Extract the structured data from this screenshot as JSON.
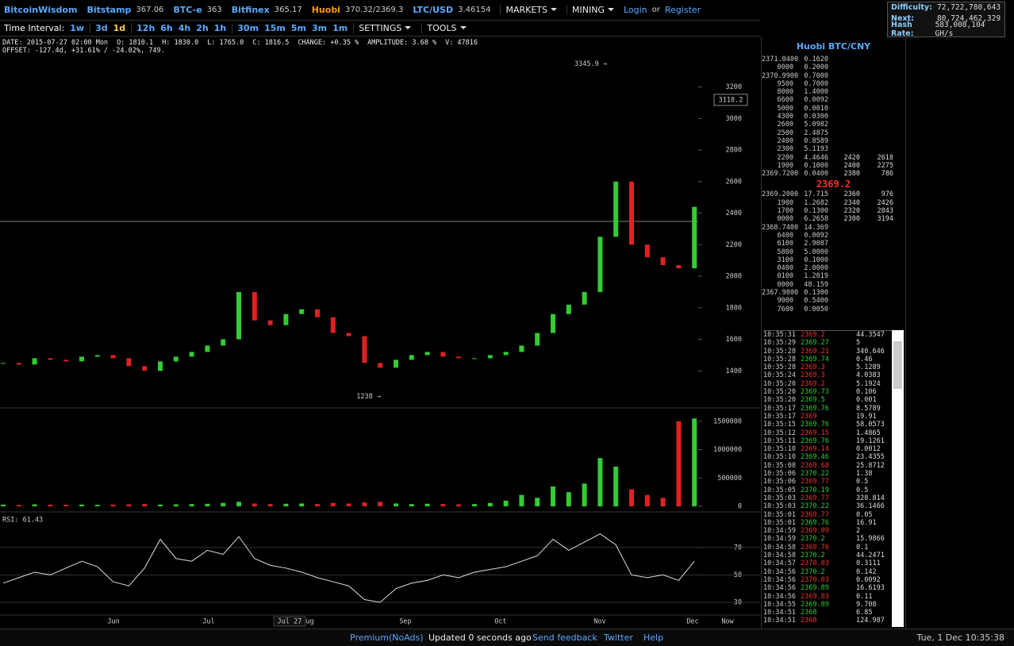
{
  "nav": {
    "brand": "BitcoinWisdom",
    "tickers": [
      [
        "Bitstamp",
        "367.06"
      ],
      [
        "BTC-e",
        "363"
      ],
      [
        "Bitfinex",
        "365.17"
      ],
      [
        "Huobi",
        "370.32/2369.3"
      ],
      [
        "LTC/USD",
        "3.46154"
      ]
    ],
    "menus": [
      "MARKETS",
      "MINING"
    ],
    "login": "Login",
    "or": "or",
    "register": "Register"
  },
  "stats": [
    [
      "Difficulty:",
      "72,722,780,643"
    ],
    [
      "Next:",
      "80,724,462,329"
    ],
    [
      "Hash Rate:",
      "583,008,104 GH/s"
    ]
  ],
  "toolbar": {
    "label": "Time Interval:",
    "intervals": [
      "1w",
      "3d",
      "1d",
      "12h",
      "6h",
      "4h",
      "2h",
      "1h",
      "30m",
      "15m",
      "5m",
      "3m",
      "1m"
    ],
    "menus": [
      "SETTINGS",
      "TOOLS"
    ]
  },
  "info": {
    "line1": [
      "DATE: 2015-07-27 02:00 Mon",
      "O: 1810.1",
      "H: 1830.0",
      "L: 1765.0",
      "C: 1816.5",
      "CHANGE: +0.35 %",
      "AMPLITUDE: 3.68 %",
      "V: 47816"
    ],
    "line2": "OFFSET: -127.4d, +31.61% / -24.02%, 749."
  },
  "chart_data": [
    {
      "type": "candlestick",
      "up_color": "#33cc33",
      "down_color": "#dd2222",
      "values": [
        1450,
        1440,
        1480,
        1470,
        1460,
        1490,
        1500,
        1480,
        1430,
        1400,
        1460,
        1490,
        1520,
        1560,
        1600,
        1900,
        1720,
        1690,
        1760,
        1790,
        1740,
        1640,
        1620,
        1450,
        1420,
        1470,
        1500,
        1520,
        1490,
        1480,
        1480,
        1500,
        1520,
        1560,
        1640,
        1760,
        1820,
        1900,
        2250,
        2600,
        2200,
        2120,
        2070,
        2050,
        2440
      ],
      "ylim": [
        1175,
        3525
      ],
      "yticks": [
        1400,
        1600,
        1800,
        2000,
        2200,
        2400,
        2600,
        2800,
        3000,
        3200
      ],
      "marker": 3118.2,
      "annotations": [
        {
          "value": 3345.9,
          "label": "3345.9 →"
        },
        {
          "value": 1238,
          "label": "1238 →"
        }
      ],
      "grid": false
    },
    {
      "type": "bar",
      "values": [
        30000,
        25000,
        35000,
        30000,
        28000,
        30000,
        25000,
        30000,
        35000,
        40000,
        30000,
        35000,
        40000,
        45000,
        60000,
        80000,
        50000,
        40000,
        45000,
        50000,
        40000,
        60000,
        50000,
        70000,
        80000,
        50000,
        40000,
        45000,
        40000,
        35000,
        40000,
        60000,
        100000,
        200000,
        150000,
        350000,
        250000,
        400000,
        850000,
        700000,
        300000,
        200000,
        150000,
        1500000,
        1550000
      ],
      "ylim": [
        0,
        1680000
      ],
      "yticks": [
        0,
        500000,
        1000000,
        1500000
      ],
      "grid": false
    },
    {
      "type": "line",
      "title": "RSI: 61.43",
      "color": "#dddddd",
      "values": [
        44,
        48,
        52,
        50,
        55,
        60,
        56,
        45,
        42,
        55,
        76,
        62,
        60,
        68,
        65,
        78,
        62,
        57,
        55,
        52,
        48,
        45,
        42,
        32,
        30,
        40,
        44,
        46,
        50,
        48,
        52,
        54,
        56,
        60,
        64,
        76,
        68,
        74,
        80,
        72,
        50,
        48,
        50,
        46,
        60
      ],
      "ylim": [
        20.7,
        94.3
      ],
      "yticks": [
        30,
        50,
        70
      ],
      "grid": true
    }
  ],
  "x_labels": [
    "Jun",
    "Jul",
    "Aug",
    "Jul 27",
    "Sep",
    "Oct",
    "Nov",
    "Dec",
    "Now"
  ],
  "orderbook": {
    "title": "Huobi BTC/CNY",
    "asks": [
      [
        "2371.0400",
        "0.1620"
      ],
      [
        "0000",
        "0.2000"
      ],
      [
        "2370.9900",
        "0.7000"
      ],
      [
        "9500",
        "0.7000"
      ],
      [
        "8000",
        "1.4000"
      ],
      [
        "6600",
        "0.0092"
      ],
      [
        "5000",
        "0.0010"
      ],
      [
        "4300",
        "0.0300"
      ],
      [
        "2600",
        "5.0982"
      ],
      [
        "2500",
        "2.4875"
      ],
      [
        "2400",
        "0.8589"
      ],
      [
        "2300",
        "5.1193"
      ],
      [
        "2200",
        "4.4646",
        "2420",
        "2618"
      ],
      [
        "1900",
        "0.1000",
        "2400",
        "2275"
      ],
      [
        "2369.7200",
        "0.0400",
        "2380",
        "786"
      ]
    ],
    "mid": "2369.2",
    "bids": [
      [
        "2369.2000",
        "17.715",
        "2360",
        "976"
      ],
      [
        "1900",
        "1.2682",
        "2340",
        "2426"
      ],
      [
        "1700",
        "0.1300",
        "2320",
        "2843"
      ],
      [
        "0000",
        "6.2658",
        "2300",
        "3194"
      ],
      [
        "2368.7400",
        "14.369"
      ],
      [
        "6400",
        "0.0092"
      ],
      [
        "6100",
        "2.9087"
      ],
      [
        "5800",
        "5.0000"
      ],
      [
        "3100",
        "0.1000"
      ],
      [
        "0400",
        "2.0000"
      ],
      [
        "0100",
        "1.2019"
      ],
      [
        "0000",
        "48.159"
      ],
      [
        "2367.9800",
        "0.1300"
      ],
      [
        "9000",
        "0.5400"
      ],
      [
        "7600",
        "0.0050"
      ]
    ]
  },
  "trades": [
    [
      "10:35:31",
      "2369.2",
      "44.3547",
      "#ee3333"
    ],
    [
      "10:35:29",
      "2369.27",
      "5",
      "#33cc33"
    ],
    [
      "10:35:28",
      "2369.21",
      "340.646",
      "#ee3333"
    ],
    [
      "10:35:28",
      "2369.74",
      "0.46",
      "#33cc33"
    ],
    [
      "10:35:28",
      "2369.3",
      "5.1289",
      "#ee3333"
    ],
    [
      "10:35:24",
      "2369.3",
      "4.0383",
      "#ee3333"
    ],
    [
      "10:35:20",
      "2369.2",
      "5.1924",
      "#ee3333"
    ],
    [
      "10:35:20",
      "2369.73",
      "0.106",
      "#33cc33"
    ],
    [
      "10:35:20",
      "2369.5",
      "0.001",
      "#33cc33"
    ],
    [
      "10:35:17",
      "2369.76",
      "8.5789",
      "#33cc33"
    ],
    [
      "10:35:17",
      "2369",
      "19.91",
      "#ee3333"
    ],
    [
      "10:35:15",
      "2369.76",
      "58.0573",
      "#33cc33"
    ],
    [
      "10:35:12",
      "2369.15",
      "1.4865",
      "#ee3333"
    ],
    [
      "10:35:11",
      "2369.76",
      "19.1261",
      "#33cc33"
    ],
    [
      "10:35:10",
      "2369.14",
      "0.0012",
      "#ee3333"
    ],
    [
      "10:35:10",
      "2369.46",
      "23.4355",
      "#33cc33"
    ],
    [
      "10:35:08",
      "2369.68",
      "25.8712",
      "#ee3333"
    ],
    [
      "10:35:06",
      "2370.22",
      "1.38",
      "#33cc33"
    ],
    [
      "10:35:06",
      "2369.77",
      "0.5",
      "#ee3333"
    ],
    [
      "10:35:05",
      "2370.19",
      "0.5",
      "#33cc33"
    ],
    [
      "10:35:03",
      "2369.77",
      "328.814",
      "#ee3333"
    ],
    [
      "10:35:03",
      "2370.22",
      "36.1466",
      "#33cc33"
    ],
    [
      "10:35:01",
      "2369.77",
      "0.05",
      "#ee3333"
    ],
    [
      "10:35:01",
      "2369.76",
      "16.91",
      "#33cc33"
    ],
    [
      "10:34:59",
      "2369.09",
      "2",
      "#ee3333"
    ],
    [
      "10:34:59",
      "2370.2",
      "15.9866",
      "#33cc33"
    ],
    [
      "10:34:58",
      "2369.76",
      "0.1",
      "#ee3333"
    ],
    [
      "10:34:58",
      "2370.2",
      "44.2471",
      "#33cc33"
    ],
    [
      "10:34:57",
      "2370.03",
      "0.3111",
      "#ee3333"
    ],
    [
      "10:34:56",
      "2370.2",
      "0.142",
      "#33cc33"
    ],
    [
      "10:34:56",
      "2370.03",
      "0.0092",
      "#ee3333"
    ],
    [
      "10:34:56",
      "2369.89",
      "16.6193",
      "#33cc33"
    ],
    [
      "10:34:56",
      "2369.83",
      "0.11",
      "#ee3333"
    ],
    [
      "10:34:55",
      "2369.89",
      "9.708",
      "#33cc33"
    ],
    [
      "10:34:51",
      "2368",
      "6.85",
      "#33cc33"
    ],
    [
      "10:34:51",
      "2368",
      "124.987",
      "#ee3333"
    ]
  ],
  "footer": {
    "links": [
      "Premium(NoAds)",
      "Send feedback",
      "Twitter",
      "Help"
    ],
    "status": "Updated 0 seconds ago",
    "clock": "Tue, 1 Dec 10:35:38"
  }
}
